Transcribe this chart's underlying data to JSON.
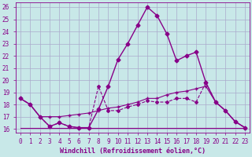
{
  "title": "",
  "xlabel": "Windchill (Refroidissement éolien,°C)",
  "bg_color": "#c8e8e8",
  "grid_color": "#aaaacc",
  "line_color": "#880088",
  "xlim": [
    -0.5,
    23.5
  ],
  "ylim": [
    15.7,
    26.4
  ],
  "xticks": [
    0,
    1,
    2,
    3,
    4,
    5,
    6,
    7,
    8,
    9,
    10,
    11,
    12,
    13,
    14,
    15,
    16,
    17,
    18,
    19,
    20,
    21,
    22,
    23
  ],
  "yticks": [
    16,
    17,
    18,
    19,
    20,
    21,
    22,
    23,
    24,
    25,
    26
  ],
  "lines": [
    {
      "x": [
        0,
        1,
        2,
        3,
        4,
        5,
        6,
        7,
        8,
        9,
        10,
        11,
        12,
        13,
        14,
        15,
        16,
        17,
        18,
        19,
        20,
        21,
        22,
        23
      ],
      "y": [
        18.5,
        18.0,
        17.0,
        16.2,
        16.5,
        16.2,
        16.1,
        16.1,
        17.6,
        19.5,
        21.7,
        23.0,
        24.5,
        26.0,
        25.3,
        23.8,
        21.6,
        22.0,
        22.3,
        19.8,
        18.2,
        17.5,
        16.6,
        16.1
      ],
      "marker": "D",
      "markersize": 2.5,
      "linewidth": 1.0,
      "linestyle": "-"
    },
    {
      "x": [
        0,
        1,
        2,
        3,
        4,
        5,
        6,
        7,
        8,
        9,
        10,
        11,
        12,
        13,
        14,
        15,
        16,
        17,
        18,
        19,
        20,
        21,
        22,
        23
      ],
      "y": [
        18.5,
        18.0,
        17.0,
        16.2,
        16.5,
        16.2,
        16.1,
        16.1,
        19.5,
        17.5,
        17.5,
        17.8,
        18.0,
        18.3,
        18.2,
        18.2,
        18.5,
        18.5,
        18.2,
        19.8,
        18.2,
        17.5,
        16.6,
        16.1
      ],
      "marker": "D",
      "markersize": 2.0,
      "linewidth": 0.8,
      "linestyle": "--"
    },
    {
      "x": [
        0,
        1,
        2,
        3,
        4,
        5,
        6,
        7,
        8,
        9,
        10,
        11,
        12,
        13,
        14,
        15,
        16,
        17,
        18,
        19,
        20,
        21,
        22,
        23
      ],
      "y": [
        18.5,
        18.0,
        17.0,
        17.0,
        17.0,
        17.1,
        17.2,
        17.3,
        17.5,
        17.7,
        17.8,
        18.0,
        18.2,
        18.5,
        18.5,
        18.8,
        19.0,
        19.1,
        19.3,
        19.5,
        18.2,
        17.5,
        16.6,
        16.1
      ],
      "marker": "+",
      "markersize": 3,
      "linewidth": 0.8,
      "linestyle": "-"
    },
    {
      "x": [
        0,
        1,
        2,
        3,
        4,
        5,
        6,
        7,
        8,
        9,
        10,
        11,
        12,
        13,
        14,
        15,
        16,
        17,
        18,
        19,
        20,
        21,
        22,
        23
      ],
      "y": [
        16.1,
        16.1,
        16.1,
        16.1,
        16.1,
        16.1,
        16.1,
        16.1,
        16.1,
        16.1,
        16.1,
        16.1,
        16.1,
        16.1,
        16.1,
        16.1,
        16.1,
        16.1,
        16.1,
        16.1,
        16.1,
        16.1,
        16.1,
        16.1
      ],
      "marker": null,
      "markersize": 0,
      "linewidth": 0.8,
      "linestyle": "-"
    }
  ],
  "font_color": "#880088",
  "tick_fontsize": 5.5,
  "label_fontsize": 6.0
}
